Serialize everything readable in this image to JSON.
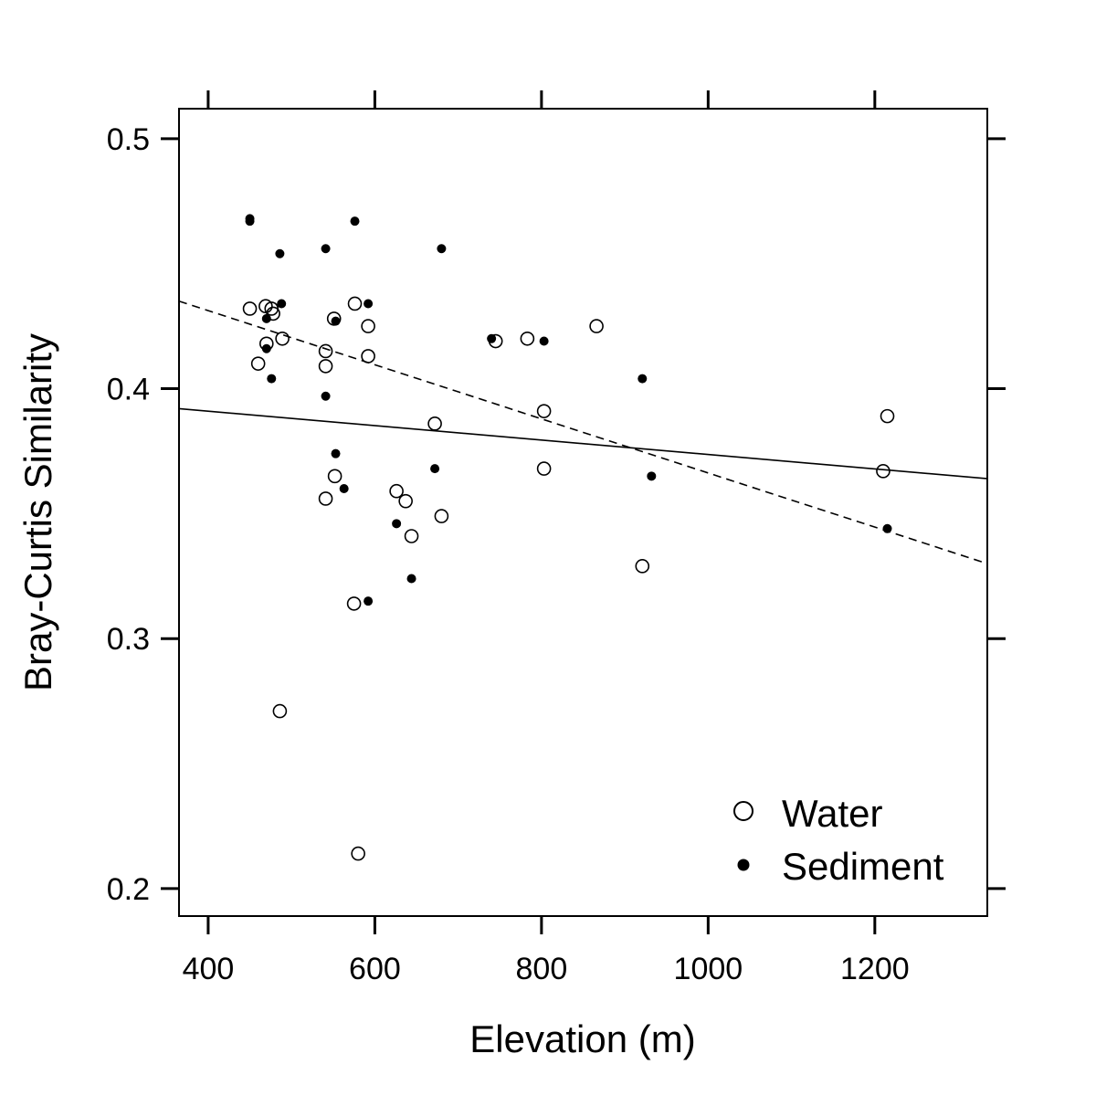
{
  "chart_data": {
    "type": "scatter",
    "xlabel": "Elevation (m)",
    "ylabel": "Bray-Curtis Similarity",
    "xlim": [
      365,
      1335
    ],
    "ylim": [
      0.189,
      0.512
    ],
    "x_ticks": [
      400,
      600,
      800,
      1000,
      1200
    ],
    "x_tick_labels": [
      "400",
      "600",
      "800",
      "1000",
      "1200"
    ],
    "y_ticks": [
      0.2,
      0.3,
      0.4,
      0.5
    ],
    "y_tick_labels": [
      "0.2",
      "0.3",
      "0.4",
      "0.5"
    ],
    "grid": false,
    "legend_position": "bottom-right",
    "series": [
      {
        "name": "Water",
        "marker": "open-circle",
        "points": [
          [
            450,
            0.432
          ],
          [
            469,
            0.433
          ],
          [
            476,
            0.432
          ],
          [
            478,
            0.43
          ],
          [
            470,
            0.418
          ],
          [
            489,
            0.42
          ],
          [
            460,
            0.41
          ],
          [
            541,
            0.415
          ],
          [
            541,
            0.409
          ],
          [
            551,
            0.428
          ],
          [
            576,
            0.434
          ],
          [
            592,
            0.425
          ],
          [
            592,
            0.413
          ],
          [
            552,
            0.365
          ],
          [
            541,
            0.356
          ],
          [
            626,
            0.359
          ],
          [
            637,
            0.355
          ],
          [
            644,
            0.341
          ],
          [
            672,
            0.386
          ],
          [
            680,
            0.349
          ],
          [
            575,
            0.314
          ],
          [
            486,
            0.271
          ],
          [
            580,
            0.214
          ],
          [
            745,
            0.419
          ],
          [
            783,
            0.42
          ],
          [
            803,
            0.391
          ],
          [
            803,
            0.368
          ],
          [
            866,
            0.425
          ],
          [
            921,
            0.329
          ],
          [
            1215,
            0.389
          ],
          [
            1210,
            0.367
          ]
        ]
      },
      {
        "name": "Sediment",
        "marker": "filled-circle",
        "points": [
          [
            450,
            0.468
          ],
          [
            450,
            0.467
          ],
          [
            486,
            0.454
          ],
          [
            488,
            0.434
          ],
          [
            470,
            0.428
          ],
          [
            470,
            0.416
          ],
          [
            476,
            0.404
          ],
          [
            541,
            0.456
          ],
          [
            576,
            0.467
          ],
          [
            553,
            0.427
          ],
          [
            592,
            0.434
          ],
          [
            541,
            0.397
          ],
          [
            553,
            0.374
          ],
          [
            563,
            0.36
          ],
          [
            680,
            0.456
          ],
          [
            740,
            0.42
          ],
          [
            803,
            0.419
          ],
          [
            672,
            0.368
          ],
          [
            626,
            0.346
          ],
          [
            644,
            0.324
          ],
          [
            592,
            0.315
          ],
          [
            921,
            0.404
          ],
          [
            932,
            0.365
          ],
          [
            1215,
            0.344
          ]
        ]
      }
    ],
    "fit_lines": [
      {
        "style": "solid",
        "x": [
          365,
          1335
        ],
        "y": [
          0.392,
          0.364
        ]
      },
      {
        "style": "dashed",
        "x": [
          365,
          1335
        ],
        "y": [
          0.435,
          0.33
        ]
      }
    ]
  }
}
